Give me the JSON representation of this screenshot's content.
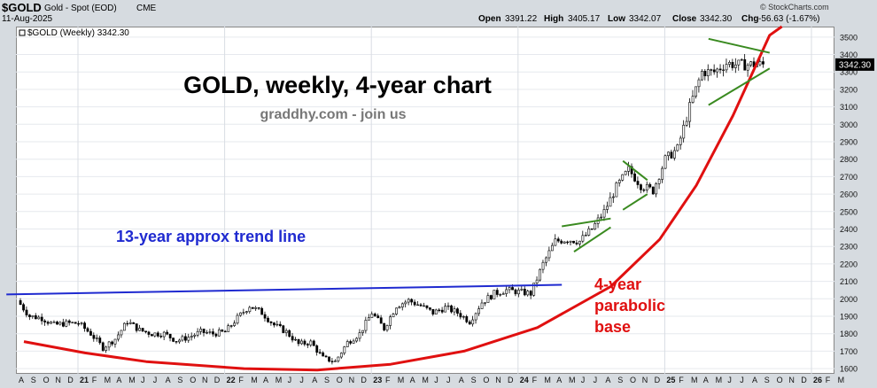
{
  "header": {
    "symbol": "$GOLD",
    "name": "Gold - Spot (EOD)",
    "exchange": "CME",
    "date": "11-Aug-2025",
    "open_label": "Open",
    "open": "3391.22",
    "high_label": "High",
    "high": "3405.17",
    "low_label": "Low",
    "low": "3342.07",
    "close_label": "Close",
    "close": "3342.30",
    "chg_label": "Chg",
    "chg": "-56.63 (-1.67%)",
    "brand": "© StockCharts.com"
  },
  "legend": {
    "series_label": "$GOLD (Weekly) 3342.30",
    "last_price": "3342.30"
  },
  "annotations": {
    "title": "GOLD, weekly, 4-year chart",
    "subtitle": "graddhy.com - join us",
    "trend_label": "13-year approx trend line",
    "parabolic_label": [
      "4-year",
      "parabolic",
      "base"
    ]
  },
  "colors": {
    "trend_line": "#1f2ad0",
    "parabolic": "#e01010",
    "patterns": "#3a8a20",
    "candles": "#000000",
    "last_price_tag": "#000000"
  },
  "chart_data": {
    "type": "line",
    "ylim": [
      1570,
      3560
    ],
    "y_ticks": [
      1600,
      1700,
      1800,
      1900,
      2000,
      2100,
      2200,
      2300,
      2400,
      2500,
      2600,
      2700,
      2800,
      2900,
      3000,
      3100,
      3200,
      3300,
      3400,
      3500
    ],
    "x_ticks": [
      "A",
      "S",
      "O",
      "N",
      "D",
      "21",
      "F",
      "M",
      "A",
      "M",
      "J",
      "J",
      "A",
      "S",
      "O",
      "N",
      "D",
      "22",
      "F",
      "M",
      "A",
      "M",
      "J",
      "J",
      "A",
      "S",
      "O",
      "N",
      "D",
      "23",
      "F",
      "M",
      "A",
      "M",
      "J",
      "J",
      "A",
      "S",
      "O",
      "N",
      "D",
      "24",
      "F",
      "M",
      "A",
      "M",
      "J",
      "J",
      "A",
      "S",
      "O",
      "N",
      "D",
      "25",
      "F",
      "M",
      "A",
      "M",
      "J",
      "J",
      "A",
      "S",
      "O",
      "N",
      "D",
      "26",
      "F",
      "M"
    ],
    "x_tick_start_month": "2020-08",
    "series": [
      {
        "name": "$GOLD (Weekly)",
        "x": [
          "2020-08",
          "2020-09",
          "2020-10",
          "2020-11",
          "2020-12",
          "2021-01",
          "2021-02",
          "2021-03",
          "2021-04",
          "2021-05",
          "2021-06",
          "2021-07",
          "2021-08",
          "2021-09",
          "2021-10",
          "2021-11",
          "2021-12",
          "2022-01",
          "2022-02",
          "2022-03",
          "2022-04",
          "2022-05",
          "2022-06",
          "2022-07",
          "2022-08",
          "2022-09",
          "2022-10",
          "2022-11",
          "2022-12",
          "2023-01",
          "2023-02",
          "2023-03",
          "2023-04",
          "2023-05",
          "2023-06",
          "2023-07",
          "2023-08",
          "2023-09",
          "2023-10",
          "2023-11",
          "2023-12",
          "2024-01",
          "2024-02",
          "2024-03",
          "2024-04",
          "2024-05",
          "2024-06",
          "2024-07",
          "2024-08",
          "2024-09",
          "2024-10",
          "2024-11",
          "2024-12",
          "2025-01",
          "2025-02",
          "2025-03",
          "2025-04",
          "2025-05",
          "2025-06",
          "2025-07",
          "2025-08"
        ],
        "y": [
          1990,
          1900,
          1890,
          1850,
          1860,
          1860,
          1800,
          1720,
          1770,
          1870,
          1820,
          1800,
          1800,
          1760,
          1780,
          1810,
          1800,
          1810,
          1890,
          1960,
          1920,
          1850,
          1810,
          1740,
          1750,
          1660,
          1640,
          1750,
          1800,
          1920,
          1830,
          1960,
          1990,
          1960,
          1920,
          1950,
          1920,
          1870,
          1980,
          2030,
          2050,
          2040,
          2030,
          2200,
          2330,
          2340,
          2330,
          2400,
          2500,
          2640,
          2740,
          2650,
          2620,
          2800,
          2860,
          3100,
          3300,
          3300,
          3350,
          3340,
          3342.3
        ]
      }
    ],
    "trendlines": [
      {
        "name": "13-year approx trend line",
        "points": [
          [
            "2020-07",
            2025
          ],
          [
            "2024-04",
            2080
          ]
        ]
      },
      {
        "name": "4-year parabolic base",
        "points": [
          [
            "2020-08",
            1755
          ],
          [
            "2021-01",
            1690
          ],
          [
            "2021-06",
            1640
          ],
          [
            "2022-02",
            1600
          ],
          [
            "2022-08",
            1592
          ],
          [
            "2023-02",
            1625
          ],
          [
            "2023-08",
            1700
          ],
          [
            "2024-02",
            1835
          ],
          [
            "2024-08",
            2070
          ],
          [
            "2024-12",
            2340
          ],
          [
            "2025-03",
            2650
          ],
          [
            "2025-06",
            3050
          ],
          [
            "2025-09",
            3510
          ],
          [
            "2025-10",
            3560
          ]
        ]
      }
    ],
    "patterns": [
      [
        [
          "2024-04",
          2415
        ],
        [
          "2024-08",
          2460
        ]
      ],
      [
        [
          "2024-05",
          2270
        ],
        [
          "2024-08",
          2410
        ]
      ],
      [
        [
          "2024-09",
          2790
        ],
        [
          "2024-11",
          2680
        ]
      ],
      [
        [
          "2024-09",
          2510
        ],
        [
          "2024-11",
          2600
        ]
      ],
      [
        [
          "2025-04",
          3490
        ],
        [
          "2025-09",
          3410
        ]
      ],
      [
        [
          "2025-04",
          3110
        ],
        [
          "2025-09",
          3320
        ]
      ]
    ],
    "grid": true,
    "legend_position": "top-left",
    "y_axis_side": "right"
  }
}
